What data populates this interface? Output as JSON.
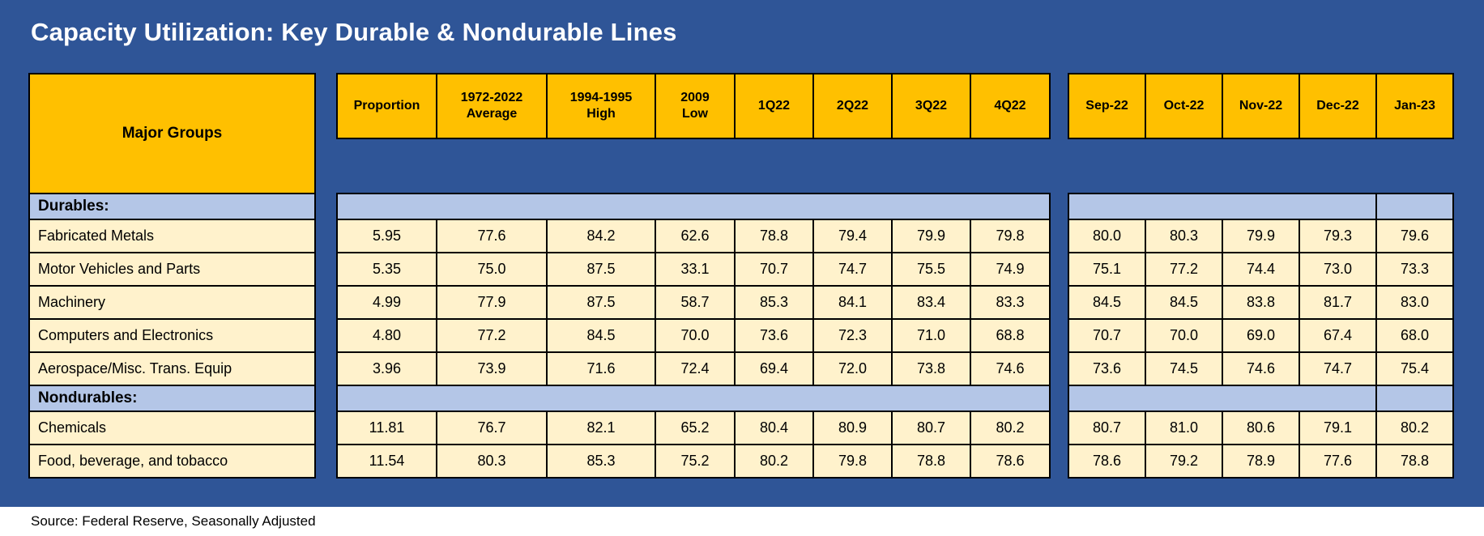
{
  "title": "Capacity Utilization: Key Durable & Nondurable Lines",
  "colors": {
    "background": "#2F5597",
    "header_gold": "#FFC000",
    "section_band": "#B4C6E7",
    "data_cell": "#FFF2CC",
    "grid_line": "#000000",
    "title_text": "#FFFFFF",
    "source_bar_bg": "#FFFFFF",
    "source_text": "#000000"
  },
  "chart_data": {
    "type": "table",
    "title": "Capacity Utilization: Key Durable & Nondurable Lines",
    "row_header": "Major Groups",
    "quarterly_columns": [
      "Proportion",
      "1972-2022\nAverage",
      "1994-1995\nHigh",
      "2009\nLow",
      "1Q22",
      "2Q22",
      "3Q22",
      "4Q22"
    ],
    "monthly_columns": [
      "Sep-22",
      "Oct-22",
      "Nov-22",
      "Dec-22",
      "Jan-23"
    ],
    "rows": [
      {
        "label": "Durables:",
        "section": true,
        "quarterly": [],
        "monthly": []
      },
      {
        "label": "Fabricated Metals",
        "section": false,
        "quarterly": [
          "5.95",
          "77.6",
          "84.2",
          "62.6",
          "78.8",
          "79.4",
          "79.9",
          "79.8"
        ],
        "monthly": [
          "80.0",
          "80.3",
          "79.9",
          "79.3",
          "79.6"
        ]
      },
      {
        "label": "Motor Vehicles and Parts",
        "section": false,
        "quarterly": [
          "5.35",
          "75.0",
          "87.5",
          "33.1",
          "70.7",
          "74.7",
          "75.5",
          "74.9"
        ],
        "monthly": [
          "75.1",
          "77.2",
          "74.4",
          "73.0",
          "73.3"
        ]
      },
      {
        "label": "Machinery",
        "section": false,
        "quarterly": [
          "4.99",
          "77.9",
          "87.5",
          "58.7",
          "85.3",
          "84.1",
          "83.4",
          "83.3"
        ],
        "monthly": [
          "84.5",
          "84.5",
          "83.8",
          "81.7",
          "83.0"
        ]
      },
      {
        "label": "Computers and Electronics",
        "section": false,
        "quarterly": [
          "4.80",
          "77.2",
          "84.5",
          "70.0",
          "73.6",
          "72.3",
          "71.0",
          "68.8"
        ],
        "monthly": [
          "70.7",
          "70.0",
          "69.0",
          "67.4",
          "68.0"
        ]
      },
      {
        "label": "Aerospace/Misc. Trans. Equip",
        "section": false,
        "quarterly": [
          "3.96",
          "73.9",
          "71.6",
          "72.4",
          "69.4",
          "72.0",
          "73.8",
          "74.6"
        ],
        "monthly": [
          "73.6",
          "74.5",
          "74.6",
          "74.7",
          "75.4"
        ]
      },
      {
        "label": "Nondurables:",
        "section": true,
        "quarterly": [],
        "monthly": []
      },
      {
        "label": "Chemicals",
        "section": false,
        "quarterly": [
          "11.81",
          "76.7",
          "82.1",
          "65.2",
          "80.4",
          "80.9",
          "80.7",
          "80.2"
        ],
        "monthly": [
          "80.7",
          "81.0",
          "80.6",
          "79.1",
          "80.2"
        ]
      },
      {
        "label": "Food, beverage, and tobacco",
        "section": false,
        "quarterly": [
          "11.54",
          "80.3",
          "85.3",
          "75.2",
          "80.2",
          "79.8",
          "78.8",
          "78.6"
        ],
        "monthly": [
          "78.6",
          "79.2",
          "78.9",
          "77.6",
          "78.8"
        ]
      }
    ],
    "source": "Source: Federal Reserve, Seasonally Adjusted"
  }
}
